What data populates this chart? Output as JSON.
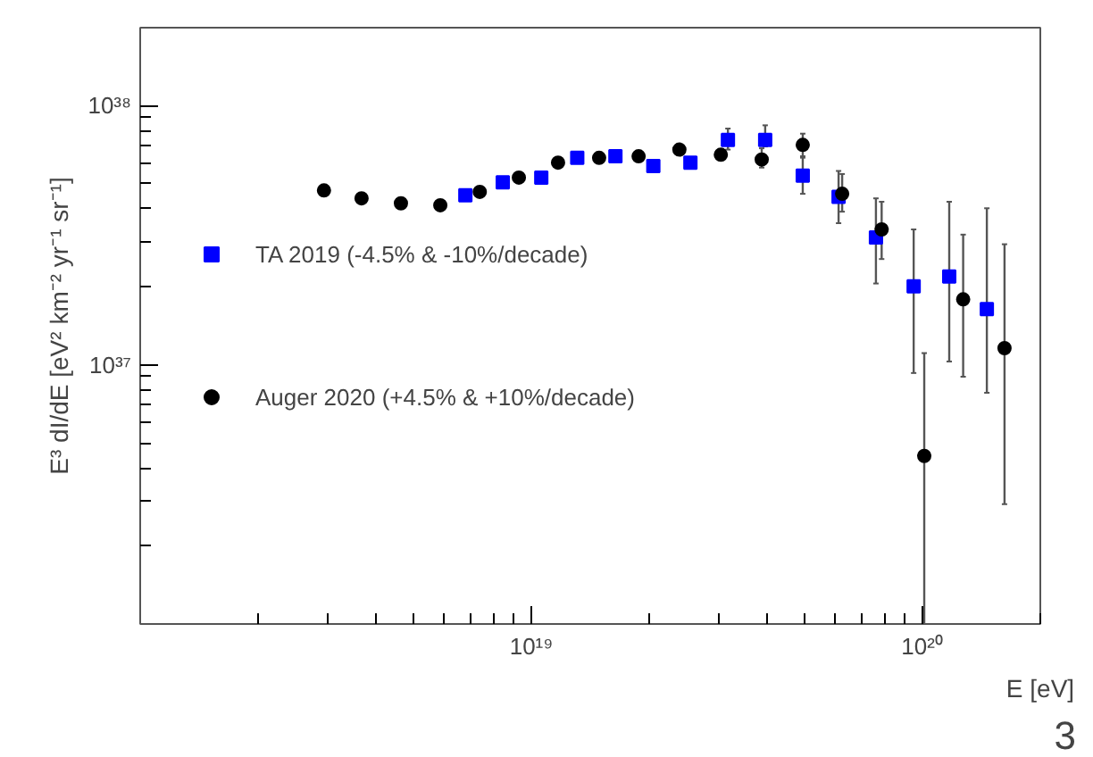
{
  "chart_data": {
    "type": "scatter",
    "xlabel": "E [eV]",
    "ylabel": "E³ dI/dE [eV² km⁻² yr⁻¹ sr⁻¹]",
    "log": "xy",
    "grid": false,
    "legend": "left",
    "xlim": [
      1e+18,
      2e+20
    ],
    "ylim": [
      1e+36,
      2e+38
    ],
    "xticks": [
      {
        "value": 1e+19,
        "label": "10¹⁹"
      },
      {
        "value": 1e+20,
        "label": "10²⁰"
      }
    ],
    "yticks": [
      {
        "value": 1e+37,
        "label": "10³⁷"
      },
      {
        "value": 1e+38,
        "label": "10³⁸"
      }
    ],
    "annotations": [
      "3"
    ],
    "series": [
      {
        "name": "TA 2019 (-4.5% & -10%/decade)",
        "color": "#0000ff",
        "marker": "square",
        "x": [
          6.78e+18,
          8.45e+18,
          1.06e+19,
          1.31e+19,
          1.64e+19,
          2.05e+19,
          2.55e+19,
          3.18e+19,
          3.96e+19,
          4.94e+19,
          6.1e+19,
          7.6e+19,
          9.49e+19,
          1.17e+20,
          1.46e+20
        ],
        "values": [
          4.51e+37,
          5.06e+37,
          5.28e+37,
          6.29e+37,
          6.38e+37,
          5.85e+37,
          6.03e+37,
          7.38e+37,
          7.38e+37,
          5.37e+37,
          4.45e+37,
          3.1e+37,
          2.01e+37,
          2.19e+37,
          1.64e+37
        ],
        "errors": [
          null,
          null,
          null,
          null,
          null,
          null,
          null,
          [
            6.77e+37,
            8.16e+37
          ],
          [
            6.96e+37,
            8.4e+37
          ],
          [
            4.57e+37,
            6.38e+37
          ],
          [
            3.52e+37,
            5.6e+37
          ],
          [
            2.06e+37,
            4.39e+37
          ],
          [
            9.3e+36,
            3.33e+37
          ],
          [
            1.03e+37,
            4.26e+37
          ],
          [
            7.8e+36,
            4.02e+37
          ]
        ]
      },
      {
        "name": "Auger 2020 (+4.5% & +10%/decade)",
        "color": "#000000",
        "marker": "circle",
        "x": [
          2.95e+18,
          3.68e+18,
          4.64e+18,
          5.85e+18,
          7.38e+18,
          9.29e+18,
          1.17e+19,
          1.49e+19,
          1.88e+19,
          2.39e+19,
          3.05e+19,
          3.88e+19,
          4.94e+19,
          6.23e+19,
          7.86e+19,
          1.01e+20,
          1.27e+20,
          1.62e+20
        ],
        "values": [
          4.71e+37,
          4.39e+37,
          4.2e+37,
          4.13e+37,
          4.65e+37,
          5.28e+37,
          6.03e+37,
          6.29e+37,
          6.38e+37,
          6.77e+37,
          6.47e+37,
          6.2e+37,
          7.06e+37,
          4.57e+37,
          3.33e+37,
          4.45e+36,
          1.79e+37,
          1.16e+37
        ],
        "errors": [
          null,
          null,
          null,
          null,
          null,
          null,
          null,
          null,
          null,
          null,
          null,
          [
            5.77e+37,
            6.85e+37
          ],
          [
            6.3e+37,
            7.8e+37
          ],
          [
            3.9e+37,
            5.45e+37
          ],
          [
            2.56e+37,
            4.26e+37
          ],
          [
            1e+36,
            1.11e+37
          ],
          [
            9e+36,
            3.18e+37
          ],
          [
            2.9e+36,
            2.92e+37
          ]
        ]
      }
    ]
  }
}
